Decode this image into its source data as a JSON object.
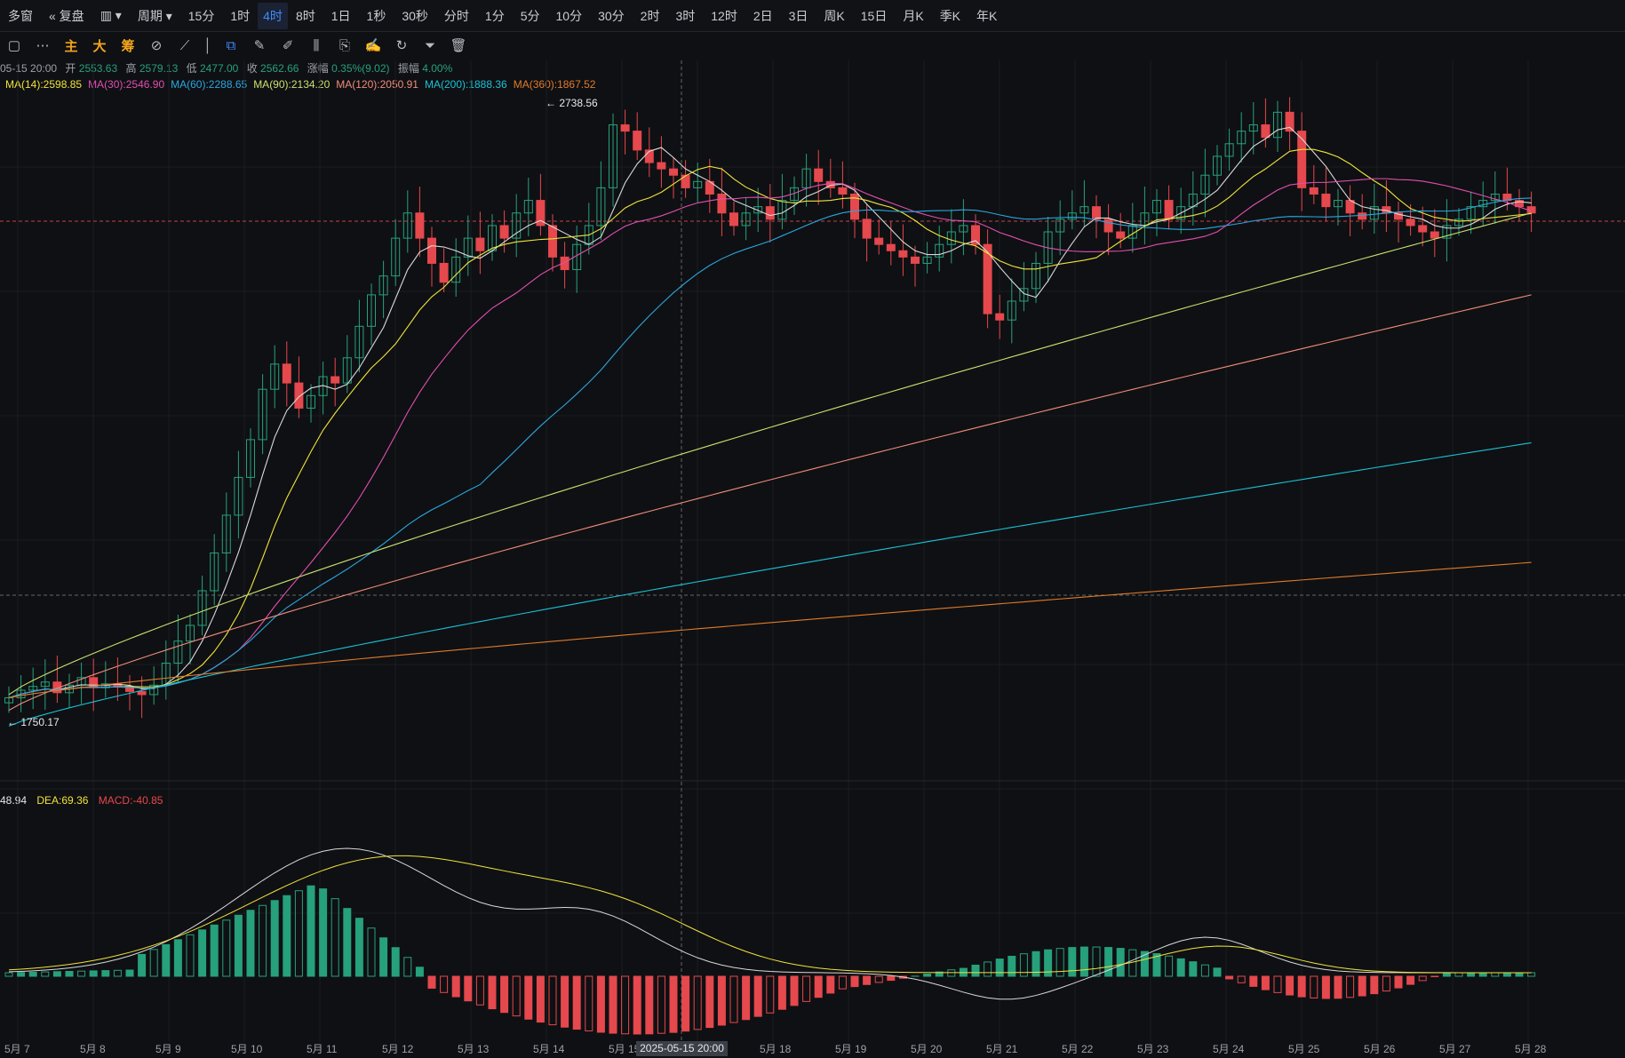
{
  "toolbar": {
    "items": [
      "多窗",
      "复盘",
      "",
      "周期",
      "15分",
      "1时",
      "4时",
      "8时",
      "1日",
      "1秒",
      "30秒",
      "分时",
      "1分",
      "5分",
      "10分",
      "30分",
      "2时",
      "3时",
      "12时",
      "2日",
      "3日",
      "周K",
      "15日",
      "月K",
      "季K",
      "年K"
    ],
    "active_index": 6
  },
  "tools": {
    "main": "主",
    "big": "大",
    "chip": "筹"
  },
  "info": {
    "time": "05-15 20:00",
    "open_label": "开",
    "open": "2553.63",
    "high_label": "高",
    "high": "2579.13",
    "low_label": "低",
    "low": "2477.00",
    "close_label": "收",
    "close": "2562.66",
    "change_label": "涨幅",
    "change": "0.35%(9.02)",
    "amp_label": "振幅",
    "amp": "4.00%"
  },
  "ma": [
    {
      "label": "MA(14):2598.85",
      "color": "#f0e43a"
    },
    {
      "label": "MA(30):2546.90",
      "color": "#e14fb0"
    },
    {
      "label": "MA(60):2288.65",
      "color": "#2aa7e0"
    },
    {
      "label": "MA(90):2134.20",
      "color": "#c8e06e"
    },
    {
      "label": "MA(120):2050.91",
      "color": "#f08c7a"
    },
    {
      "label": "MA(200):1888.36",
      "color": "#19c3d8"
    },
    {
      "label": "MA(360):1867.52",
      "color": "#e07b2a"
    }
  ],
  "macd": {
    "dif": "48.94",
    "dea": "DEA:69.36",
    "macd": "MACD:-40.85"
  },
  "annotations": {
    "high": "← 2738.56",
    "low": "← 1750.17",
    "crosshair_time": "2025-05-15 20:00"
  },
  "chart_data": {
    "type": "candlestick",
    "x_labels": [
      "5月 7",
      "5月 8",
      "5月 9",
      "5月 10",
      "5月 11",
      "5月 12",
      "5月 13",
      "5月 14",
      "5月 15",
      "5月 17",
      "5月 18",
      "5月 19",
      "5月 20",
      "5月 21",
      "5月 22",
      "5月 23",
      "5月 24",
      "5月 25",
      "5月 26",
      "5月 27",
      "5月 28"
    ],
    "colors": {
      "up": "#26a17b",
      "down": "#e5484d"
    },
    "candles_close": [
      1790,
      1802,
      1808,
      1815,
      1798,
      1810,
      1822,
      1806,
      1812,
      1808,
      1800,
      1795,
      1810,
      1845,
      1880,
      1905,
      1960,
      2020,
      2080,
      2140,
      2200,
      2280,
      2320,
      2290,
      2250,
      2270,
      2300,
      2290,
      2330,
      2380,
      2430,
      2460,
      2520,
      2560,
      2520,
      2480,
      2450,
      2490,
      2520,
      2500,
      2540,
      2520,
      2560,
      2580,
      2540,
      2490,
      2470,
      2510,
      2540,
      2600,
      2700,
      2690,
      2660,
      2640,
      2630,
      2620,
      2600,
      2610,
      2590,
      2560,
      2540,
      2560,
      2570,
      2550,
      2580,
      2600,
      2630,
      2610,
      2600,
      2590,
      2550,
      2520,
      2510,
      2500,
      2490,
      2480,
      2490,
      2510,
      2530,
      2540,
      2510,
      2400,
      2390,
      2420,
      2440,
      2480,
      2530,
      2550,
      2560,
      2570,
      2550,
      2530,
      2520,
      2540,
      2560,
      2580,
      2550,
      2570,
      2590,
      2620,
      2650,
      2670,
      2690,
      2700,
      2680,
      2720,
      2690,
      2600,
      2590,
      2570,
      2580,
      2560,
      2550,
      2570,
      2560,
      2550,
      2540,
      2530,
      2520,
      2540,
      2550,
      2570,
      2580,
      2590,
      2580,
      2570,
      2560
    ],
    "macd_hist_shape": "rise to 5月10 peak, negative 5月12-5月19, positive 5月20-5月23, slightly negative 5月24-5月26"
  }
}
